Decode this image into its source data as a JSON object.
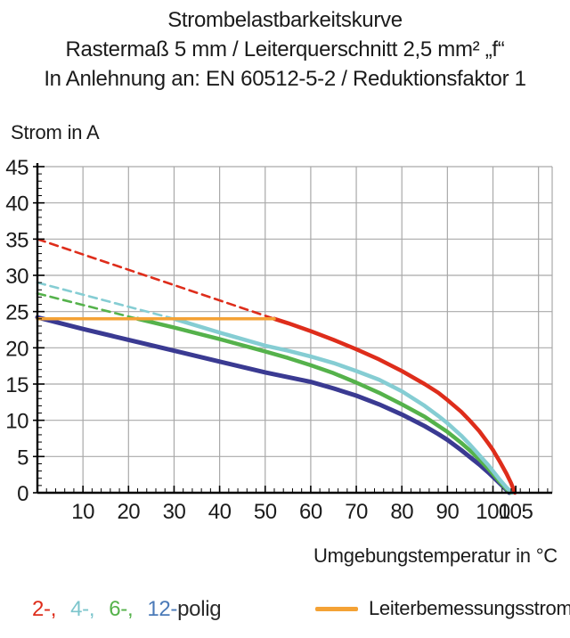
{
  "title": {
    "line1": "Strombelastbarkeitskurve",
    "line2": "Rastermaß 5 mm / Leiterquerschnitt 2,5 mm² „f“",
    "line3": "In Anlehnung an: EN 60512-5-2 / Reduktionsfaktor 1"
  },
  "chart_data": {
    "type": "line",
    "ylabel": "Strom in A",
    "xlabel": "Umgebungstemperatur in °C",
    "xlim": [
      0,
      113
    ],
    "ylim": [
      0,
      45
    ],
    "xticks": [
      10,
      20,
      30,
      40,
      50,
      60,
      70,
      80,
      90,
      100,
      105
    ],
    "xgrid": [
      10,
      20,
      30,
      40,
      50,
      60,
      70,
      80,
      90,
      100,
      110,
      113
    ],
    "yticks": [
      0,
      5,
      10,
      15,
      20,
      25,
      30,
      35,
      40,
      45
    ],
    "x_minor_step": 2,
    "y_minor_step": 1,
    "grid": true,
    "grid_color": "#a9a9a9",
    "axis_color": "#000000",
    "series": [
      {
        "name": "12-polig",
        "color": "#3a3a92",
        "width": 5,
        "style": "solid",
        "points": [
          [
            0,
            24.2
          ],
          [
            10,
            22.6
          ],
          [
            20,
            21.1
          ],
          [
            30,
            19.6
          ],
          [
            40,
            18.1
          ],
          [
            50,
            16.6
          ],
          [
            60,
            15.3
          ],
          [
            65,
            14.4
          ],
          [
            70,
            13.4
          ],
          [
            75,
            12.2
          ],
          [
            80,
            10.8
          ],
          [
            85,
            9.2
          ],
          [
            88,
            8.1
          ],
          [
            90,
            7.3
          ],
          [
            93,
            5.9
          ],
          [
            95,
            4.9
          ],
          [
            97,
            3.9
          ],
          [
            99,
            2.8
          ],
          [
            100,
            2.2
          ],
          [
            101.5,
            1.3
          ],
          [
            102.8,
            0.5
          ],
          [
            103.6,
            0
          ]
        ]
      },
      {
        "name": "6-polig dashed extrapolation",
        "color": "#55b24b",
        "width": 2.6,
        "style": "dashed",
        "points": [
          [
            0,
            27.5
          ],
          [
            22,
            24
          ]
        ]
      },
      {
        "name": "6-polig",
        "color": "#55b24b",
        "width": 4.5,
        "style": "solid",
        "points": [
          [
            22,
            24
          ],
          [
            30,
            22.8
          ],
          [
            40,
            21.2
          ],
          [
            50,
            19.5
          ],
          [
            55,
            18.6
          ],
          [
            60,
            17.6
          ],
          [
            65,
            16.5
          ],
          [
            70,
            15.2
          ],
          [
            75,
            13.8
          ],
          [
            80,
            12.2
          ],
          [
            85,
            10.5
          ],
          [
            90,
            8.4
          ],
          [
            93,
            6.9
          ],
          [
            95,
            5.8
          ],
          [
            97,
            4.6
          ],
          [
            99,
            3.3
          ],
          [
            100,
            2.6
          ],
          [
            101.5,
            1.5
          ],
          [
            103,
            0.5
          ],
          [
            103.9,
            0
          ]
        ]
      },
      {
        "name": "4-polig dashed extrapolation",
        "color": "#85cdd3",
        "width": 2.6,
        "style": "dashed",
        "points": [
          [
            0,
            29
          ],
          [
            30,
            24
          ]
        ]
      },
      {
        "name": "4-polig",
        "color": "#85cdd3",
        "width": 4.5,
        "style": "solid",
        "points": [
          [
            30,
            24
          ],
          [
            40,
            22.1
          ],
          [
            50,
            20.3
          ],
          [
            55,
            19.6
          ],
          [
            60,
            18.8
          ],
          [
            65,
            17.9
          ],
          [
            70,
            16.8
          ],
          [
            75,
            15.6
          ],
          [
            80,
            14.0
          ],
          [
            85,
            12.0
          ],
          [
            88,
            10.6
          ],
          [
            90,
            9.6
          ],
          [
            93,
            7.9
          ],
          [
            95,
            6.6
          ],
          [
            97,
            5.2
          ],
          [
            99,
            3.8
          ],
          [
            100,
            3.0
          ],
          [
            101.5,
            1.8
          ],
          [
            103,
            0.7
          ],
          [
            104.2,
            0
          ]
        ]
      },
      {
        "name": "2-polig dashed extrapolation",
        "color": "#de2d1b",
        "width": 2.6,
        "style": "dashed",
        "points": [
          [
            0,
            35
          ],
          [
            52,
            24
          ]
        ]
      },
      {
        "name": "2-polig",
        "color": "#de2d1b",
        "width": 4.5,
        "style": "solid",
        "points": [
          [
            52,
            24
          ],
          [
            55,
            23.4
          ],
          [
            60,
            22.3
          ],
          [
            65,
            21.1
          ],
          [
            70,
            19.8
          ],
          [
            75,
            18.4
          ],
          [
            80,
            16.8
          ],
          [
            85,
            15.0
          ],
          [
            88,
            13.8
          ],
          [
            90,
            12.8
          ],
          [
            93,
            11.2
          ],
          [
            95,
            9.9
          ],
          [
            97,
            8.5
          ],
          [
            99,
            6.8
          ],
          [
            100,
            5.9
          ],
          [
            101.5,
            4.3
          ],
          [
            103,
            2.6
          ],
          [
            104,
            1.3
          ],
          [
            104.8,
            0
          ]
        ]
      },
      {
        "name": "Leiterbemessungsstrom",
        "color": "#f4a235",
        "width": 3.5,
        "style": "solid",
        "points": [
          [
            0,
            24
          ],
          [
            52,
            24
          ]
        ]
      }
    ]
  },
  "legend": {
    "poles": [
      {
        "label": "2-,",
        "color": "#de2d1b"
      },
      {
        "label": "4-,",
        "color": "#7cc5cc"
      },
      {
        "label": "6-,",
        "color": "#55b24b"
      },
      {
        "label": "12-",
        "color": "#4b7ab8"
      }
    ],
    "poles_suffix": "polig",
    "rated": {
      "label": "Leiterbemessungsstrom",
      "color": "#f4a235"
    }
  }
}
